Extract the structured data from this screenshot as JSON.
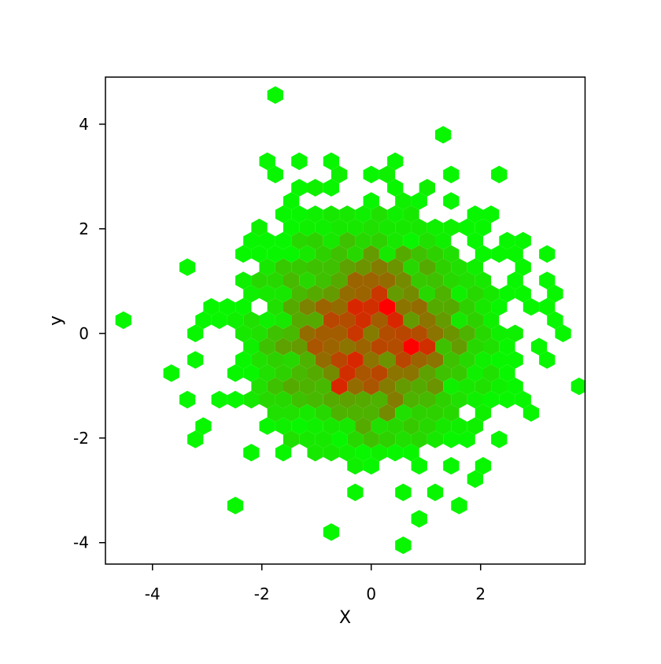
{
  "window": {
    "background": "#ffffff"
  },
  "chart_data": {
    "type": "hexbin",
    "title": "",
    "xlabel": "X",
    "ylabel": "y",
    "xlim": [
      -4.86,
      3.91
    ],
    "ylim": [
      -4.41,
      4.9
    ],
    "x_ticks": [
      -4,
      -2,
      0,
      2
    ],
    "y_ticks": [
      -4,
      -2,
      0,
      2,
      4
    ],
    "grid": false,
    "legend": false,
    "frame_color": "#000000",
    "empty_bin_color": "#ffffff",
    "color_ramp": {
      "low_color": "#00ff00",
      "high_color": "#ff0000",
      "mapping": "linear in bin count: count 1 = bright green, max count = bright red, mid = olive/brown"
    },
    "hex_bins": {
      "shape": "pointy-top",
      "xbins": 30,
      "bin_width_x_units": 0.292
    },
    "distribution": {
      "kind": "bivariate-normal",
      "mean": [
        0,
        0
      ],
      "sd": [
        1,
        1
      ],
      "n_points": 2500,
      "seed": 7,
      "max_bin_count_approx": 28,
      "blob_radius_units": 3.4
    },
    "outlier_cells": [
      {
        "x": -4.53,
        "y": 0.36,
        "count": 1
      },
      {
        "x": -1.69,
        "y": 4.52,
        "count": 1
      },
      {
        "x": 1.39,
        "y": 3.82,
        "count": 1
      },
      {
        "x": 2.28,
        "y": 3.14,
        "count": 1
      },
      {
        "x": 0.55,
        "y": -4.03,
        "count": 1
      },
      {
        "x": 3.44,
        "y": 0.17,
        "count": 1
      },
      {
        "x": 3.55,
        "y": -0.07,
        "count": 1
      },
      {
        "x": -3.37,
        "y": 1.11,
        "count": 1
      },
      {
        "x": -2.62,
        "y": -3.27,
        "count": 1
      }
    ]
  }
}
